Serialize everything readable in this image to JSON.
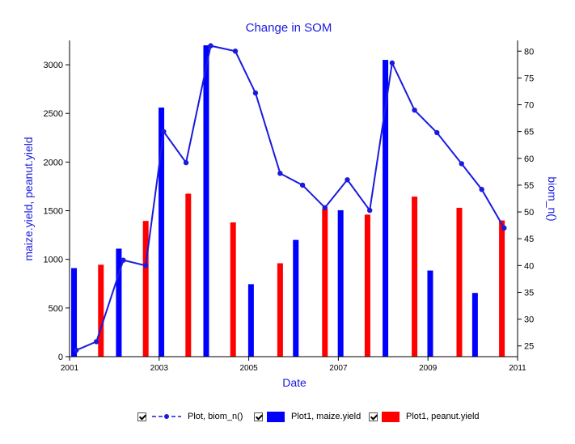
{
  "chart_data": {
    "type": "bar",
    "title": "Change in SOM",
    "xlabel": "Date",
    "ylabel_left": "maize.yield, peanut.yield",
    "ylabel_right": "biom_n()",
    "x_ticks": [
      "2001",
      "2003",
      "2005",
      "2007",
      "2009",
      "2011"
    ],
    "x_range": [
      2001,
      2011
    ],
    "y_left_range": [
      0,
      3250
    ],
    "y_left_ticks": [
      0,
      500,
      1000,
      1500,
      2000,
      2500,
      3000
    ],
    "y_right_range": [
      23,
      82
    ],
    "y_right_ticks": [
      25,
      30,
      35,
      40,
      45,
      50,
      55,
      60,
      65,
      70,
      75,
      80
    ],
    "grid": false,
    "legend_position": "bottom",
    "series": [
      {
        "name": "Plot,  biom_n()",
        "kind": "line",
        "axis": "right",
        "color": "#1a1adf",
        "x": [
          2001.15,
          2001.6,
          2002.2,
          2002.7,
          2003.1,
          2003.6,
          2004.15,
          2004.7,
          2005.15,
          2005.7,
          2006.2,
          2006.7,
          2007.2,
          2007.7,
          2008.2,
          2008.7,
          2009.2,
          2009.75,
          2010.2,
          2010.7
        ],
        "y": [
          24.2,
          25.8,
          41,
          40,
          65,
          59.2,
          81,
          80,
          72.2,
          57.2,
          55,
          50.8,
          56,
          50.3,
          77.8,
          69,
          64.8,
          59,
          54.2,
          47
        ]
      },
      {
        "name": "Plot1,  maize.yield",
        "kind": "bar",
        "axis": "left",
        "color": "#0000ff",
        "x": [
          2001.1,
          2002.1,
          2003.05,
          2004.05,
          2005.05,
          2006.05,
          2007.05,
          2008.05,
          2009.05,
          2010.05
        ],
        "values": [
          910,
          1110,
          2560,
          3200,
          745,
          1200,
          1505,
          3050,
          885,
          655
        ]
      },
      {
        "name": "Plot1,  peanut.yield",
        "kind": "bar",
        "axis": "left",
        "color": "#ff0000",
        "x": [
          2001.7,
          2002.7,
          2003.65,
          2004.65,
          2005.7,
          2006.7,
          2007.65,
          2008.7,
          2009.7,
          2010.65
        ],
        "values": [
          945,
          1395,
          1675,
          1380,
          960,
          1520,
          1460,
          1645,
          1530,
          1400
        ]
      }
    ]
  }
}
